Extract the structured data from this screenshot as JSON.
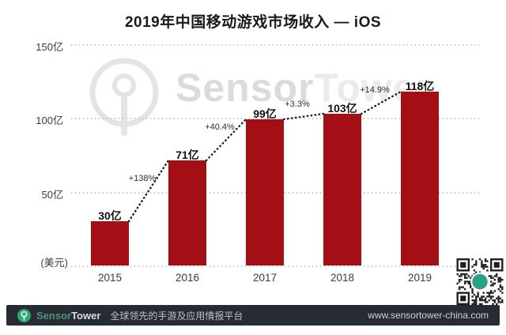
{
  "title": "2019年中国移动游戏市场收入 — iOS",
  "chart_data": {
    "type": "bar",
    "title": "2019年中国移动游戏市场收入 — iOS",
    "categories": [
      "2015",
      "2016",
      "2017",
      "2018",
      "2019"
    ],
    "values": [
      30,
      71,
      99,
      103,
      118
    ],
    "bar_labels": [
      "30亿",
      "71亿",
      "99亿",
      "103亿",
      "118亿"
    ],
    "growth_labels": [
      "+138%",
      "+40.4%",
      "+3.3%",
      "+14.9%"
    ],
    "y_ticks": [
      "150亿",
      "100亿",
      "50亿"
    ],
    "y_axis_unit": "(美元)",
    "ylim": [
      0,
      150
    ],
    "bar_color": "#a30f15",
    "grid": "horizontal-dotted",
    "legend": "none",
    "trend_line": "dotted-connector-between-bar-tops"
  },
  "watermark": {
    "brand_bold": "Sensor",
    "brand_light": "Tower"
  },
  "icons": {
    "watermark_logo": "sensortower-radio-tower-icon",
    "footer_logo": "sensortower-radio-tower-icon",
    "qr_code": "wechat-qr-code"
  },
  "footer": {
    "brand_green": "Sensor",
    "brand_white": "Tower",
    "tagline": "全球领先的手游及应用情报平台",
    "url": "www.sensortower-china.com"
  },
  "colors": {
    "bar": "#a30f15",
    "footer_bg": "#262b34",
    "brand_green": "#2ea873",
    "qr_center": "#2aa184"
  }
}
